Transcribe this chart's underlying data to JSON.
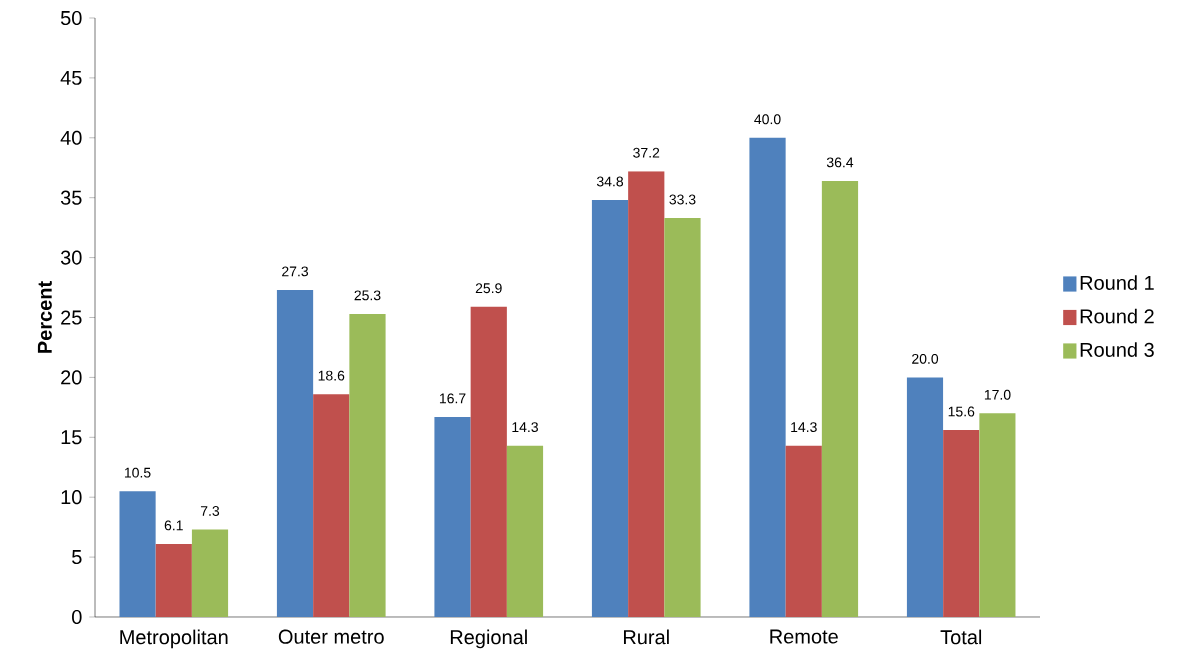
{
  "chart_data": {
    "type": "bar",
    "ylabel": "Percent",
    "categories": [
      "Metropolitan",
      "Outer metro",
      "Regional",
      "Rural",
      "Remote",
      "Total"
    ],
    "series": [
      {
        "name": "Round 1",
        "color": "#4f81bd",
        "values": [
          10.5,
          27.3,
          16.7,
          34.8,
          40.0,
          20.0
        ],
        "value_labels": [
          "10.5",
          "27.3",
          "16.7",
          "34.8",
          "40.0",
          "20.0"
        ]
      },
      {
        "name": "Round 2",
        "color": "#c0504d",
        "values": [
          6.1,
          18.6,
          25.9,
          37.2,
          14.3,
          15.6
        ],
        "value_labels": [
          "6.1",
          "18.6",
          "25.9",
          "37.2",
          "14.3",
          "15.6"
        ]
      },
      {
        "name": "Round 3",
        "color": "#9bbb59",
        "values": [
          7.3,
          25.3,
          14.3,
          33.3,
          36.4,
          17.0
        ],
        "value_labels": [
          "7.3",
          "25.3",
          "14.3",
          "33.3",
          "36.4",
          "17.0"
        ]
      }
    ],
    "ylim": [
      0,
      50
    ],
    "yticks": [
      0,
      5,
      10,
      15,
      20,
      25,
      30,
      35,
      40,
      45,
      50
    ],
    "grid": false,
    "legend": "right"
  }
}
